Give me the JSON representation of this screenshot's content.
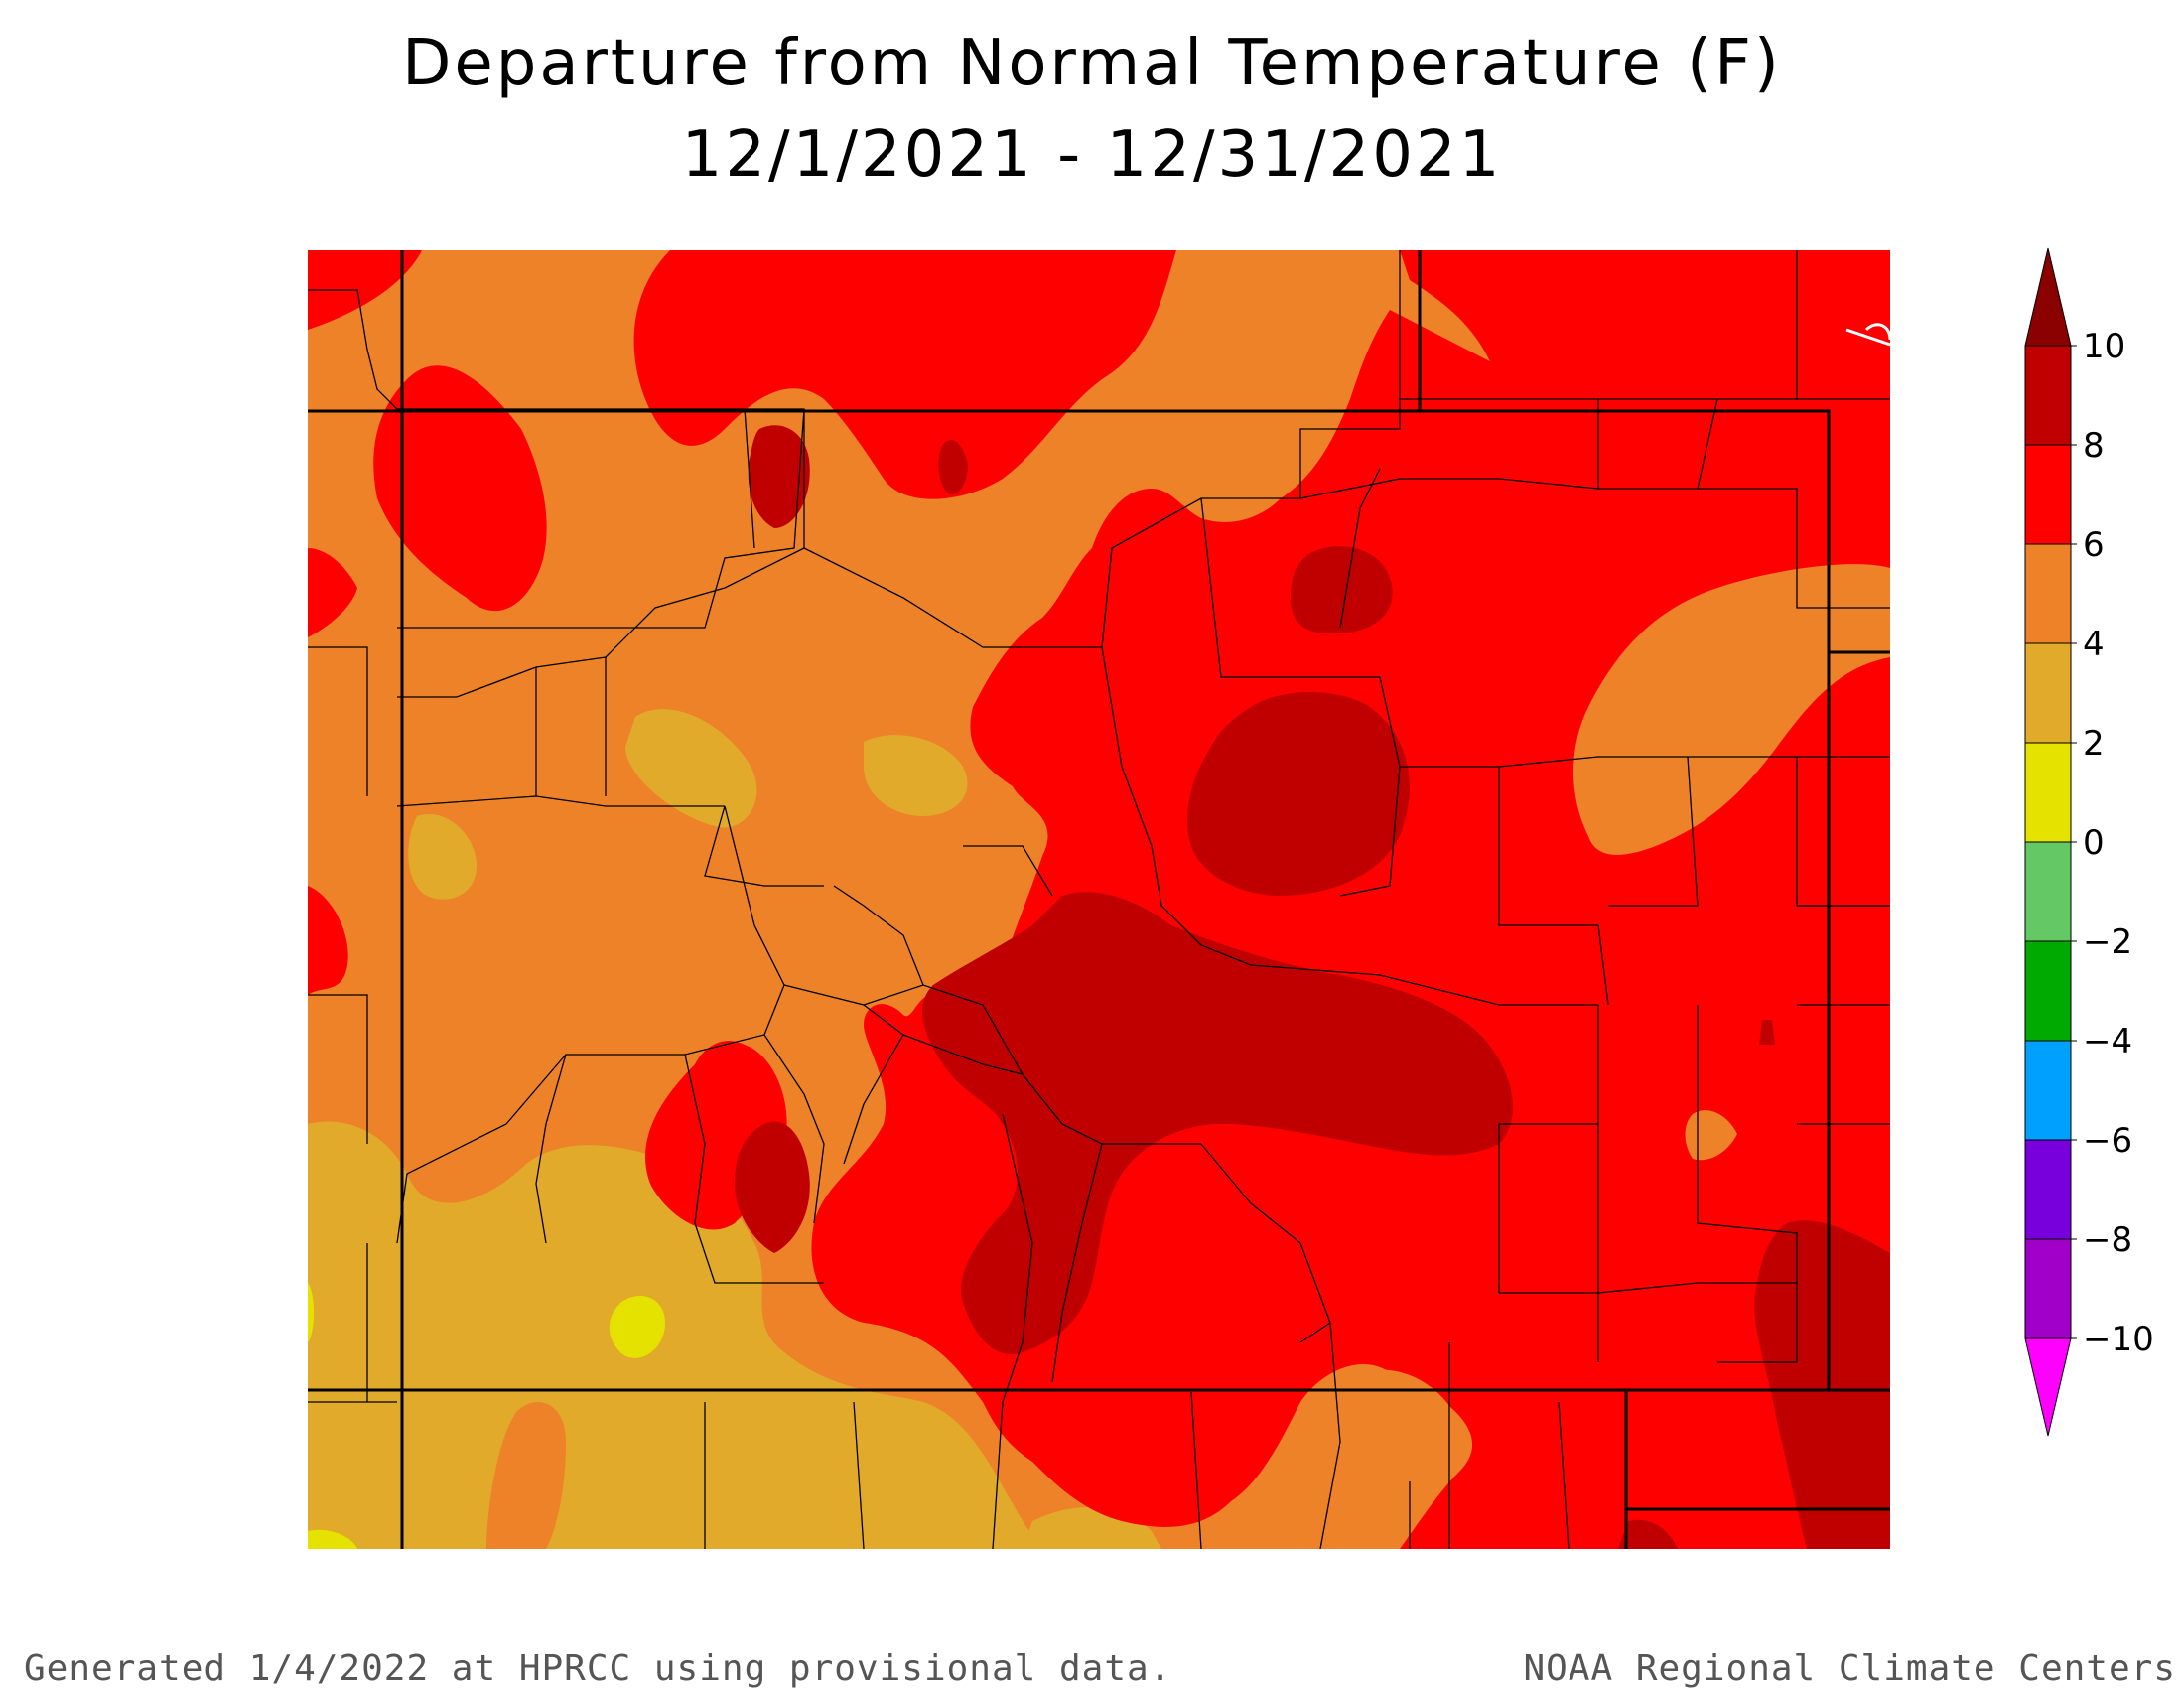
{
  "title": {
    "line1": "Departure from Normal Temperature (F)",
    "line2": "12/1/2021 - 12/31/2021"
  },
  "footer": {
    "left": "Generated 1/4/2022 at HPRCC using provisional data.",
    "right": "NOAA Regional Climate Centers"
  },
  "legend": {
    "ticks": [
      "10",
      "8",
      "6",
      "4",
      "2",
      "0",
      "−2",
      "−4",
      "−6",
      "−8",
      "−10"
    ],
    "bins": [
      {
        "range": "8 to 10",
        "color": "#c00000"
      },
      {
        "range": "6 to 8",
        "color": "#ff0000"
      },
      {
        "range": "4 to 6",
        "color": "#ee8228"
      },
      {
        "range": "2 to 4",
        "color": "#e2aa2a"
      },
      {
        "range": "0 to 2",
        "color": "#e6e200"
      },
      {
        "range": "-2 to 0",
        "color": "#64c864"
      },
      {
        "range": "-4 to -2",
        "color": "#00aa00"
      },
      {
        "range": "-6 to -4",
        "color": "#00a0ff"
      },
      {
        "range": "-8 to -6",
        "color": "#7800dc"
      },
      {
        "range": "-10 to -8",
        "color": "#a000c8"
      }
    ],
    "over_color": "#8b0000",
    "under_color": "#ff00ff"
  },
  "map": {
    "region": "Colorado",
    "levels": {
      "lt2": "#e6e200",
      "2to4": "#e2aa2a",
      "4to6": "#ee8228",
      "6to8": "#ff0000",
      "8to10": "#c00000"
    }
  }
}
